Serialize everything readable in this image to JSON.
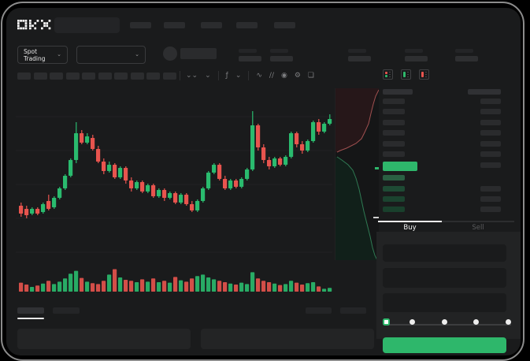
{
  "colors": {
    "accent_green": "#2eb76b",
    "candle_green": "#2abb6e",
    "candle_red": "#e8544e",
    "bid_row_green": "#1e4a34",
    "depth_ask_line": "#a05050",
    "depth_bid_line": "#2f7a53",
    "placeholder_dark": "#242527",
    "placeholder_mid": "#2b2c2e"
  },
  "header": {
    "logo": "OKX",
    "nav_placeholder_count": 5
  },
  "market_bar": {
    "market_type_label": "Spot Trading",
    "market_type_chevron": "⌄",
    "pair_dropdown_chevron": "⌄",
    "ticker_stat_count": 5
  },
  "chart_toolbar": {
    "timeframe_slot_count": 10,
    "icons": [
      {
        "name": "candle-style-icon",
        "glyph": "⌄⌄"
      },
      {
        "name": "candle-dropdown-icon",
        "glyph": "⌄"
      },
      {
        "name": "divider",
        "glyph": ""
      },
      {
        "name": "indicators-icon",
        "glyph": "ƒ"
      },
      {
        "name": "indicators-dropdown-icon",
        "glyph": "⌄"
      },
      {
        "name": "divider",
        "glyph": ""
      },
      {
        "name": "line-chart-icon",
        "glyph": "∿"
      },
      {
        "name": "draw-tools-icon",
        "glyph": "∕∕"
      },
      {
        "name": "screenshot-icon",
        "glyph": "◉"
      },
      {
        "name": "settings-icon",
        "glyph": "⚙"
      },
      {
        "name": "fullscreen-icon",
        "glyph": "❏"
      }
    ]
  },
  "order_book": {
    "view_icons": [
      "orderbook-combined-icon",
      "orderbook-bids-icon",
      "orderbook-asks-icon"
    ],
    "ask_row_count": 6,
    "bid_row_count": 4,
    "bid_rows_with_amount": [
      1,
      2,
      3
    ]
  },
  "order_panel": {
    "tabs": {
      "buy": "Buy",
      "sell": "Sell"
    },
    "field_count": 3,
    "slider": {
      "stop_count": 5,
      "active_index": 0
    }
  },
  "bottom_bar": {
    "left_tab_count": 2,
    "active_tab_index": 0,
    "right_placeholder_count": 2,
    "panel_count": 2
  },
  "chart_data": [
    {
      "type": "candlestick",
      "title": "",
      "xlabel": "",
      "ylabel": "",
      "note": "skeleton chart - no axis tick labels visible; values are relative 0-100 scale estimated from pixels",
      "grid": "faint horizontal lines",
      "candles_ohlc": [
        [
          33,
          35,
          26,
          28
        ],
        [
          31,
          33,
          25,
          27
        ],
        [
          28,
          32,
          27,
          31
        ],
        [
          31,
          32,
          27,
          28
        ],
        [
          29,
          35,
          28,
          34
        ],
        [
          36,
          40,
          30,
          31
        ],
        [
          32,
          39,
          31,
          38
        ],
        [
          38,
          45,
          37,
          44
        ],
        [
          44,
          53,
          43,
          52
        ],
        [
          52,
          63,
          51,
          62
        ],
        [
          62,
          86,
          60,
          79
        ],
        [
          79,
          81,
          72,
          73
        ],
        [
          73,
          79,
          72,
          77
        ],
        [
          76,
          78,
          68,
          69
        ],
        [
          69,
          71,
          60,
          61
        ],
        [
          61,
          63,
          53,
          55
        ],
        [
          55,
          61,
          54,
          59
        ],
        [
          59,
          60,
          50,
          51
        ],
        [
          51,
          58,
          50,
          57
        ],
        [
          57,
          58,
          47,
          49
        ],
        [
          49,
          51,
          42,
          44
        ],
        [
          44,
          49,
          43,
          48
        ],
        [
          48,
          49,
          41,
          42
        ],
        [
          42,
          47,
          41,
          46
        ],
        [
          46,
          47,
          38,
          39
        ],
        [
          39,
          44,
          38,
          43
        ],
        [
          43,
          44,
          36,
          38
        ],
        [
          38,
          42,
          37,
          41
        ],
        [
          41,
          42,
          34,
          35
        ],
        [
          35,
          41,
          34,
          40
        ],
        [
          40,
          41,
          33,
          34
        ],
        [
          34,
          36,
          29,
          30
        ],
        [
          30,
          37,
          29,
          36
        ],
        [
          36,
          45,
          35,
          44
        ],
        [
          44,
          55,
          43,
          54
        ],
        [
          54,
          60,
          53,
          59
        ],
        [
          59,
          60,
          49,
          50
        ],
        [
          50,
          52,
          43,
          44
        ],
        [
          44,
          50,
          43,
          49
        ],
        [
          49,
          50,
          44,
          45
        ],
        [
          45,
          51,
          44,
          50
        ],
        [
          50,
          57,
          49,
          56
        ],
        [
          56,
          93,
          55,
          84
        ],
        [
          84,
          85,
          68,
          70
        ],
        [
          70,
          72,
          60,
          62
        ],
        [
          62,
          64,
          56,
          58
        ],
        [
          58,
          64,
          57,
          63
        ],
        [
          63,
          64,
          58,
          59
        ],
        [
          59,
          65,
          58,
          64
        ],
        [
          64,
          80,
          63,
          79
        ],
        [
          79,
          80,
          70,
          72
        ],
        [
          72,
          74,
          66,
          68
        ],
        [
          68,
          75,
          67,
          74
        ],
        [
          74,
          87,
          73,
          86
        ],
        [
          86,
          88,
          78,
          80
        ],
        [
          80,
          86,
          79,
          85
        ],
        [
          85,
          91,
          84,
          88
        ]
      ]
    },
    {
      "type": "bar",
      "name": "volume",
      "note": "colors follow candle direction",
      "values": [
        38,
        30,
        20,
        26,
        34,
        46,
        32,
        42,
        56,
        76,
        88,
        58,
        42,
        36,
        32,
        46,
        72,
        95,
        60,
        50,
        46,
        40,
        52,
        42,
        56,
        40,
        46,
        38,
        62,
        48,
        42,
        56,
        66,
        72,
        60,
        52,
        46,
        40,
        34,
        30,
        38,
        32,
        82,
        56,
        46,
        40,
        34,
        28,
        32,
        46,
        38,
        30,
        36,
        40,
        22,
        12,
        16
      ]
    },
    {
      "type": "area",
      "name": "depth",
      "asks_curve": [
        [
          55,
          2
        ],
        [
          51,
          10
        ],
        [
          48,
          20
        ],
        [
          45,
          32
        ],
        [
          42,
          45
        ],
        [
          37,
          56
        ],
        [
          33,
          64
        ],
        [
          26,
          70
        ],
        [
          14,
          76
        ],
        [
          6,
          79
        ],
        [
          2,
          81
        ]
      ],
      "bids_curve": [
        [
          2,
          87
        ],
        [
          8,
          91
        ],
        [
          16,
          97
        ],
        [
          22,
          104
        ],
        [
          26,
          114
        ],
        [
          30,
          128
        ],
        [
          33,
          142
        ],
        [
          36,
          156
        ],
        [
          40,
          172
        ],
        [
          44,
          188
        ],
        [
          47,
          202
        ],
        [
          50,
          212
        ],
        [
          53,
          218
        ]
      ]
    }
  ]
}
